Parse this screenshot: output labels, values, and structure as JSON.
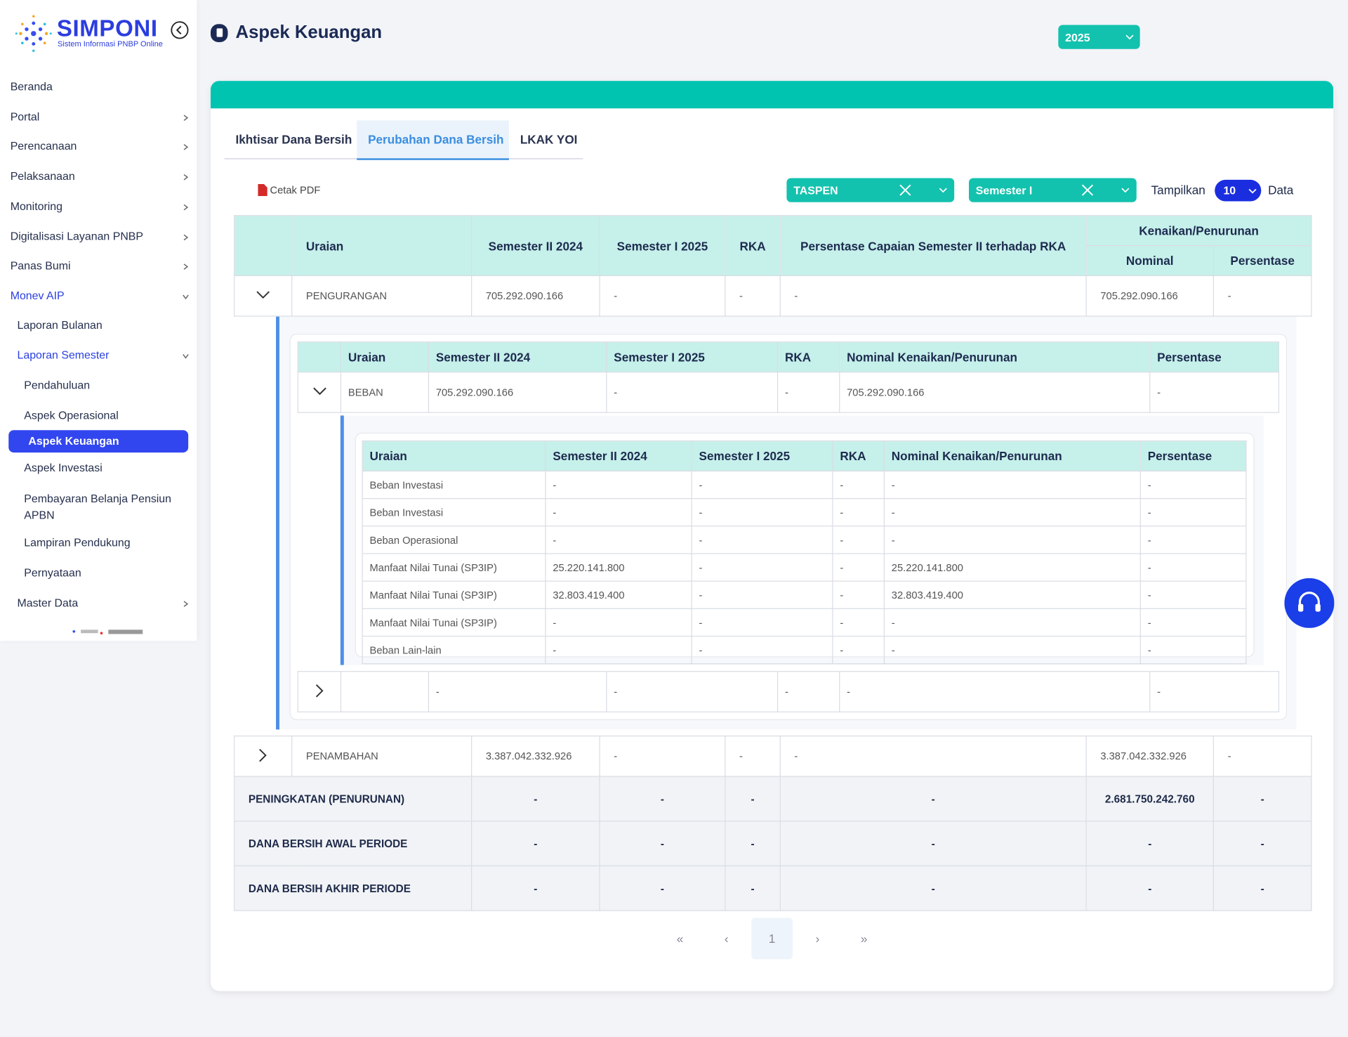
{
  "sidebar": {
    "brand": "SIMPONI",
    "tagline": "Sistem Informasi PNBP Online",
    "menu": [
      "Beranda",
      "Portal",
      "Perencanaan",
      "Pelaksanaan",
      "Monitoring",
      "Digitalisasi Layanan PNBP",
      "Panas Bumi",
      "Monev AIP",
      "Laporan Bulanan",
      "Laporan Semester",
      "Pendahuluan",
      "Aspek Operasional",
      "Aspek Keuangan",
      "Aspek Investasi",
      "Pembayaran Belanja Pensiun APBN",
      "Lampiran Pendukung",
      "Pernyataan",
      "Master Data"
    ]
  },
  "header": {
    "title": "Aspek Keuangan",
    "year": "2025"
  },
  "tabs": [
    "Ikhtisar Dana Bersih",
    "Perubahan Dana Bersih",
    "LKAK YOI"
  ],
  "toolbar": {
    "print": "Cetak PDF",
    "entity": "TASPEN",
    "period": "Semester I",
    "show_label": "Tampilkan",
    "page_size": "10",
    "data_label": "Data"
  },
  "main_table": {
    "headers": [
      "Uraian",
      "Semester II 2024",
      "Semester I 2025",
      "RKA",
      "Persentase Capaian Semester II terhadap RKA",
      "Kenaikan/Penurunan"
    ],
    "subheaders": [
      "Nominal",
      "Persentase"
    ],
    "rows": [
      [
        "PENGURANGAN",
        "705.292.090.166",
        "-",
        "-",
        "-",
        "705.292.090.166",
        "-"
      ],
      [
        "PENAMBAHAN",
        "3.387.042.332.926",
        "-",
        "-",
        "-",
        "3.387.042.332.926",
        "-"
      ]
    ],
    "totals": [
      [
        "PENINGKATAN (PENURUNAN)",
        "-",
        "-",
        "-",
        "-",
        "2.681.750.242.760",
        "-"
      ],
      [
        "DANA BERSIH AWAL PERIODE",
        "-",
        "-",
        "-",
        "-",
        "-",
        "-"
      ],
      [
        "DANA BERSIH AKHIR PERIODE",
        "-",
        "-",
        "-",
        "-",
        "-",
        "-"
      ]
    ]
  },
  "level1_table": {
    "headers": [
      "Uraian",
      "Semester II 2024",
      "Semester I 2025",
      "RKA",
      "Nominal Kenaikan/Penurunan",
      "Persentase"
    ],
    "rows": [
      [
        "BEBAN",
        "705.292.090.166",
        "-",
        "-",
        "705.292.090.166",
        "-"
      ],
      [
        null,
        "-",
        "-",
        "-",
        "-",
        "-"
      ]
    ]
  },
  "level2_table": {
    "headers": [
      "Uraian",
      "Semester II 2024",
      "Semester I 2025",
      "RKA",
      "Nominal Kenaikan/Penurunan",
      "Persentase"
    ],
    "rows": [
      [
        "Beban Investasi",
        "-",
        "-",
        "-",
        "-",
        "-"
      ],
      [
        "Beban Investasi",
        "-",
        "-",
        "-",
        "-",
        "-"
      ],
      [
        "Beban Operasional",
        "-",
        "-",
        "-",
        "-",
        "-"
      ],
      [
        "Manfaat Nilai Tunai (SP3IP)",
        "25.220.141.800",
        "-",
        "-",
        "25.220.141.800",
        "-"
      ],
      [
        "Manfaat Nilai Tunai (SP3IP)",
        "32.803.419.400",
        "-",
        "-",
        "32.803.419.400",
        "-"
      ],
      [
        "Manfaat Nilai Tunai (SP3IP)",
        "-",
        "-",
        "-",
        "-",
        "-"
      ],
      [
        "Beban Lain-lain",
        "-",
        "-",
        "-",
        "-",
        "-"
      ]
    ]
  },
  "pagination": {
    "first": "«",
    "prev": "‹",
    "page": "1",
    "next": "›",
    "last": "»"
  }
}
